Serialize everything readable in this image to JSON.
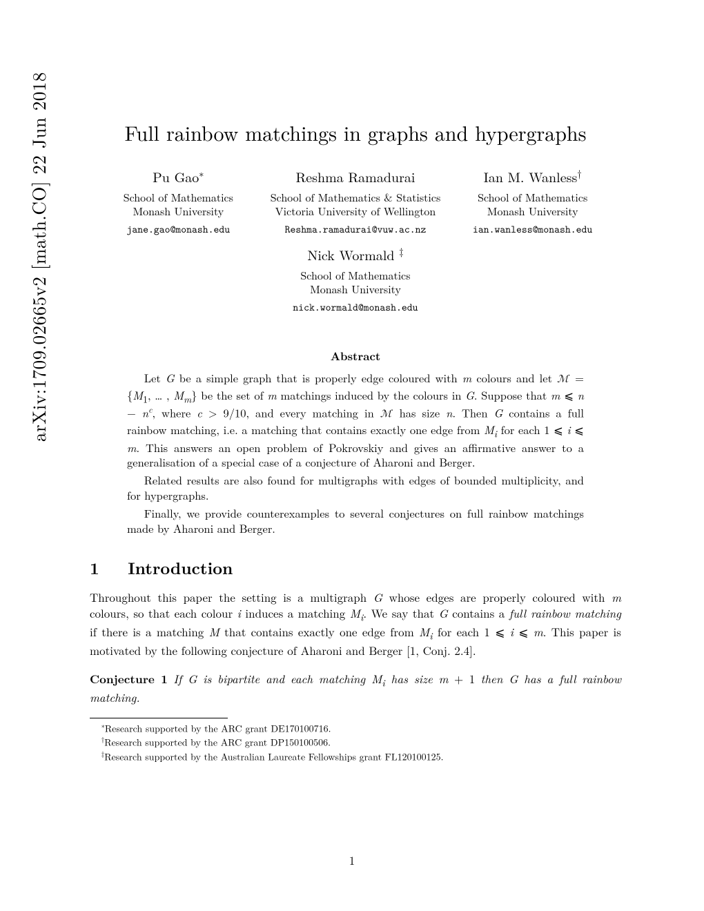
{
  "arxiv_id": "arXiv:1709.02665v2  [math.CO]  22 Jun 2018",
  "title": "Full rainbow matchings in graphs and hypergraphs",
  "authors": [
    {
      "name": "Pu Gao",
      "sup": "∗",
      "aff_line1": "School of Mathematics",
      "aff_line2": "Monash University",
      "email": "jane.gao@monash.edu"
    },
    {
      "name": "Reshma Ramadurai",
      "sup": "",
      "aff_line1": "School of Mathematics & Statistics",
      "aff_line2": "Victoria University of Wellington",
      "email": "Reshma.ramadurai@vuw.ac.nz"
    },
    {
      "name": "Ian M. Wanless",
      "sup": "†",
      "aff_line1": "School of Mathematics",
      "aff_line2": "Monash University",
      "email": "ian.wanless@monash.edu"
    }
  ],
  "author_row2": {
    "name": "Nick Wormald ",
    "sup": "‡",
    "aff_line1": "School of Mathematics",
    "aff_line2": "Monash University",
    "email": "nick.wormald@monash.edu"
  },
  "abstract_label": "Abstract",
  "abstract": {
    "p1_pre": "Let ",
    "p1_mid": " be a simple graph that is properly edge coloured with ",
    "p1_html": "Let <span class='ital'>G</span> be a simple graph that is properly edge coloured with <span class='ital'>m</span> colours and let <span class='cal'>ℳ</span> = {<span class='ital'>M</span><sub>1</sub>, … , <span class='ital'>M</span><sub><span class='ital'>m</span></sub>} be the set of <span class='ital'>m</span> matchings induced by the colours in <span class='ital'>G</span>. Suppose that <span class='ital'>m</span> ⩽ <span class='ital'>n</span> − <span class='ital'>n</span><sup><span class='ital'>c</span></sup>, where <span class='ital'>c</span> &gt; 9/10, and every matching in <span class='cal'>ℳ</span> has size <span class='ital'>n</span>. Then <span class='ital'>G</span> contains a full rainbow matching, i.e. a matching that contains exactly one edge from <span class='ital'>M</span><sub><span class='ital'>i</span></sub> for each 1 ⩽ <span class='ital'>i</span> ⩽ <span class='ital'>m</span>. This answers an open problem of Pokrovskiy and gives an affirmative answer to a generalisation of a special case of a conjecture of Aharoni and Berger.",
    "p2": "Related results are also found for multigraphs with edges of bounded multiplicity, and for hypergraphs.",
    "p3": "Finally, we provide counterexamples to several conjectures on full rainbow matchings made by Aharoni and Berger."
  },
  "section1_number": "1",
  "section1_title": "Introduction",
  "intro_html": "Throughout this paper the setting is a multigraph <span class='ital'>G</span> whose edges are properly coloured with <span class='ital'>m</span> colours, so that each colour <span class='ital'>i</span> induces a matching <span class='ital'>M</span><sub><span class='ital'>i</span></sub>. We say that <span class='ital'>G</span> contains a <span class='ital'>full rainbow matching</span> if there is a matching <span class='ital'>M</span> that contains exactly one edge from <span class='ital'>M</span><sub><span class='ital'>i</span></sub> for each 1 ⩽ <span class='ital'>i</span> ⩽ <span class='ital'>m</span>. This paper is motivated by the following conjecture of Aharoni and Berger [1, Conj. 2.4].",
  "conjecture_label": "Conjecture 1",
  "conjecture_html": "<span class='ital'>If G is bipartite and each matching M</span><sub><span class='ital'>i</span></sub><span class='ital'> has size m</span> + 1 <span class='ital'>then G has a full rainbow matching.</span>",
  "footnotes": {
    "f1_sym": "∗",
    "f1": "Research supported by the ARC grant DE170100716.",
    "f2_sym": "†",
    "f2": "Research supported by the ARC grant DP150100506.",
    "f3_sym": "‡",
    "f3": "Research supported by the Australian Laureate Fellowships grant FL120100125."
  },
  "page_number": "1"
}
